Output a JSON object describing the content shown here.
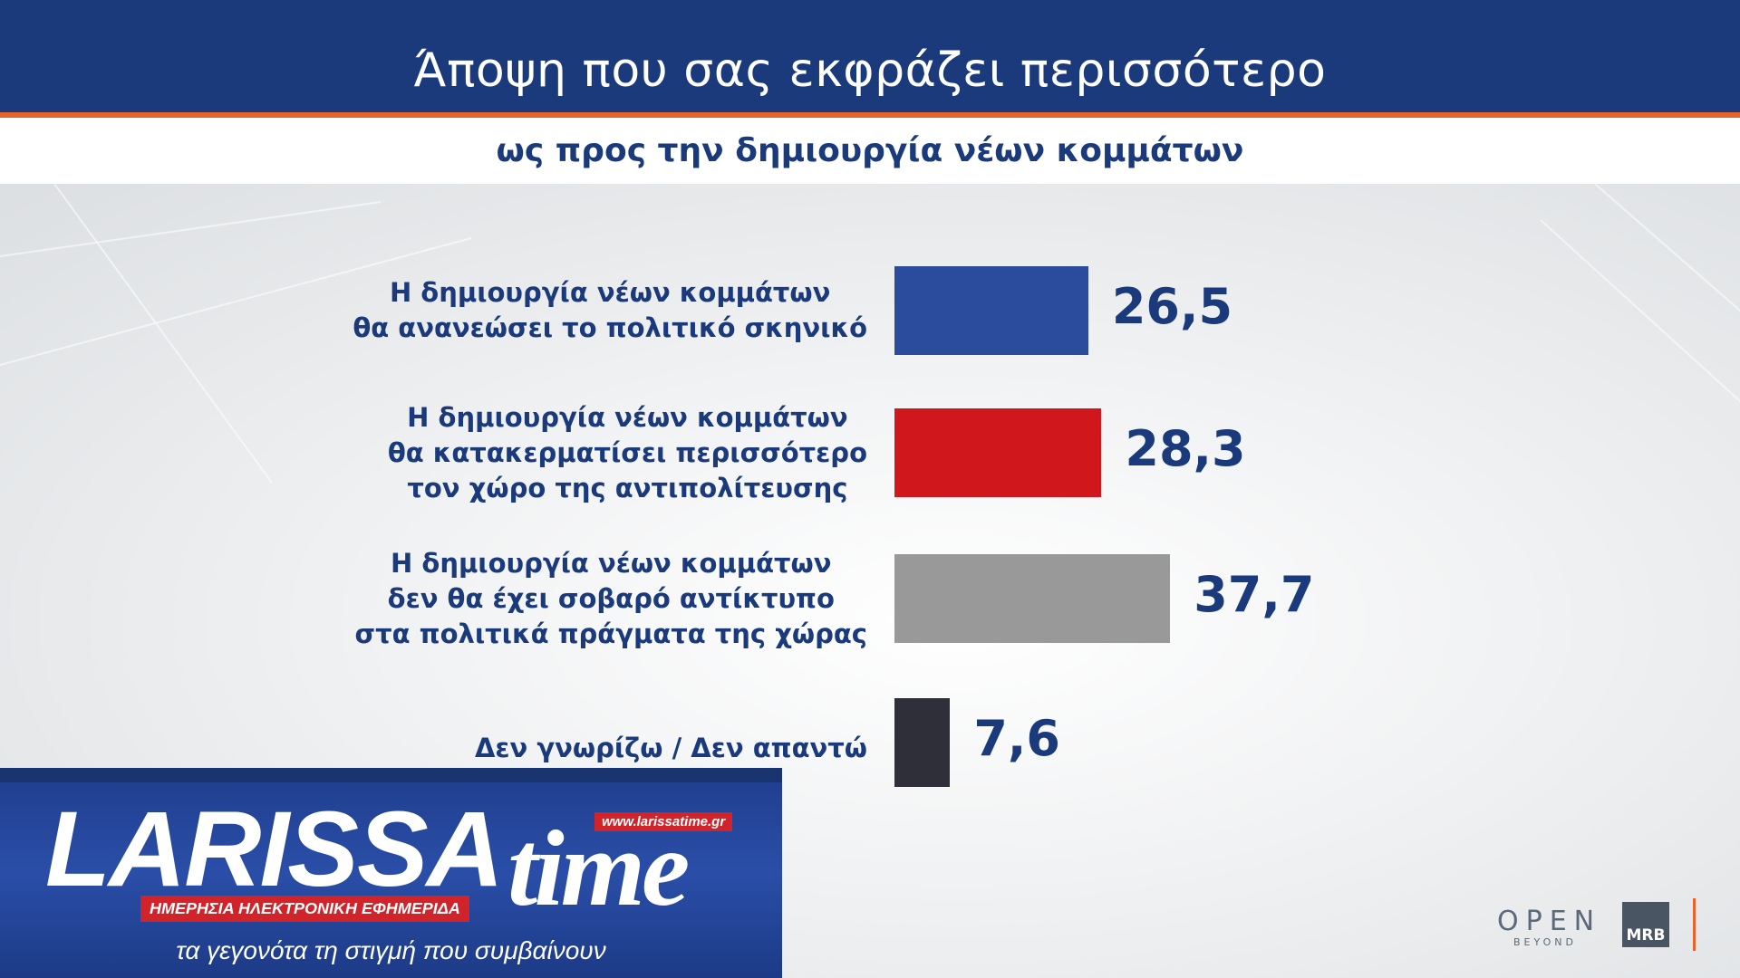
{
  "header": {
    "title": "Άποψη που σας εκφράζει περισσότερο",
    "subtitle": "ως προς την δημιουργία νέων κομμάτων"
  },
  "chart_data": {
    "type": "bar",
    "orientation": "horizontal",
    "categories": [
      "Η δημιουργία νέων κομμάτων θα ανανεώσει το πολιτικό σκηνικό",
      "Η δημιουργία νέων κομμάτων θα κατακερματίσει περισσότερο τον χώρο της αντιπολίτευσης",
      "Η δημιουργία νέων κομμάτων δεν θα έχει σοβαρό αντίκτυπο στα πολιτικά πράγματα της χώρας",
      "Δεν γνωρίζω / Δεν απαντώ"
    ],
    "category_lines": [
      [
        "Η δημιουργία νέων κομμάτων",
        "θα ανανεώσει το πολιτικό σκηνικό"
      ],
      [
        "Η δημιουργία νέων κομμάτων",
        "θα κατακερματίσει περισσότερο",
        "τον χώρο της αντιπολίτευσης"
      ],
      [
        "Η δημιουργία νέων κομμάτων",
        "δεν θα έχει σοβαρό αντίκτυπο",
        "στα πολιτικά πράγματα της χώρας"
      ],
      [
        "Δεν γνωρίζω / Δεν απαντώ"
      ]
    ],
    "values": [
      26.5,
      28.3,
      37.7,
      7.6
    ],
    "value_labels": [
      "26,5",
      "28,3",
      "37,7",
      "7,6"
    ],
    "colors": [
      "#2b4c9c",
      "#d0181c",
      "#999999",
      "#2e2f38"
    ],
    "title": "Άποψη που σας εκφράζει περισσότερο",
    "subtitle": "ως προς την δημιουργία νέων κομμάτων",
    "grid": false
  },
  "watermark": {
    "brand_main": "LARISSA",
    "brand_time": "time",
    "url": "www.larissatime.gr",
    "tagline_red": "ΗΜΕΡΗΣΙΑ ΗΛΕΚΤΡΟΝΙΚΗ ΕΦΗΜΕΡΙΔΑ",
    "tagline": "τα γεγονότα τη στιγμή που συμβαίνουν"
  },
  "footer": {
    "open_logo": "OPEN",
    "open_sub": "BEYOND",
    "mrb_logo": "MRB"
  }
}
